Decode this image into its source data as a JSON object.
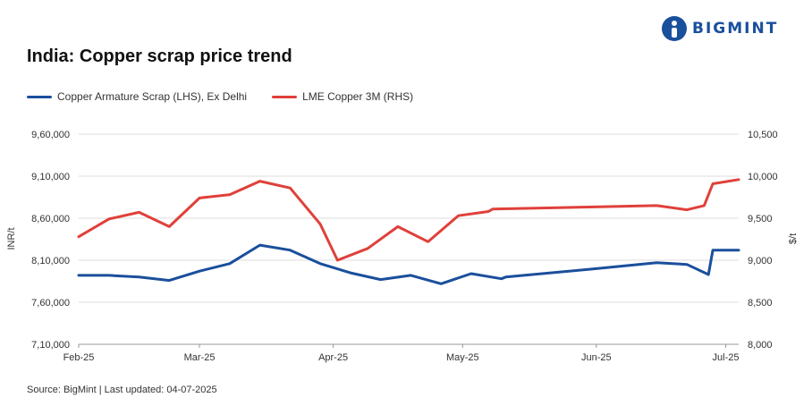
{
  "header": {
    "title": "India: Copper scrap price trend",
    "logo_text": "BIGMINT"
  },
  "footer": {
    "source": "Source: BigMint | Last updated: 04-07-2025"
  },
  "colors": {
    "series_lhs": "#1a4f9c",
    "series_rhs": "#e0403a",
    "grid": "#dddddd",
    "brand": "#1a4f9c"
  },
  "chart_data": {
    "type": "line",
    "title": "India: Copper scrap price trend",
    "xlabel": "",
    "ylabel_left": "INR/t",
    "ylabel_right": "$/t",
    "ylim_left": [
      710000,
      960000
    ],
    "ylim_right": [
      8000,
      10500
    ],
    "yticks_left": [
      "7,10,000",
      "7,60,000",
      "8,10,000",
      "8,60,000",
      "9,10,000",
      "9,60,000"
    ],
    "yticks_right": [
      "8,000",
      "8,500",
      "9,000",
      "9,500",
      "10,000",
      "10,500"
    ],
    "xticks": [
      "Feb-25",
      "Mar-25",
      "Apr-25",
      "May-25",
      "Jun-25",
      "Jul-25"
    ],
    "x_range": [
      "2025-02-01",
      "2025-07-04"
    ],
    "grid": true,
    "legend_position": "top-left",
    "series": [
      {
        "name": "Copper Armature Scrap (LHS), Ex Delhi",
        "axis": "left",
        "points": [
          [
            "2025-02-01",
            792000
          ],
          [
            "2025-02-08",
            792000
          ],
          [
            "2025-02-15",
            790000
          ],
          [
            "2025-02-22",
            786000
          ],
          [
            "2025-03-01",
            797000
          ],
          [
            "2025-03-08",
            806000
          ],
          [
            "2025-03-15",
            828000
          ],
          [
            "2025-03-22",
            822000
          ],
          [
            "2025-03-29",
            806000
          ],
          [
            "2025-04-05",
            795000
          ],
          [
            "2025-04-12",
            787000
          ],
          [
            "2025-04-19",
            792000
          ],
          [
            "2025-04-26",
            782000
          ],
          [
            "2025-05-03",
            794000
          ],
          [
            "2025-05-10",
            788000
          ],
          [
            "2025-05-11",
            790000
          ],
          [
            "2025-06-01",
            800000
          ],
          [
            "2025-06-15",
            807000
          ],
          [
            "2025-06-22",
            805000
          ],
          [
            "2025-06-27",
            793000
          ],
          [
            "2025-06-28",
            822000
          ],
          [
            "2025-07-04",
            822000
          ]
        ]
      },
      {
        "name": "LME Copper 3M (RHS)",
        "axis": "right",
        "points": [
          [
            "2025-02-01",
            9280
          ],
          [
            "2025-02-08",
            9490
          ],
          [
            "2025-02-15",
            9570
          ],
          [
            "2025-02-22",
            9400
          ],
          [
            "2025-03-01",
            9740
          ],
          [
            "2025-03-08",
            9780
          ],
          [
            "2025-03-15",
            9940
          ],
          [
            "2025-03-22",
            9860
          ],
          [
            "2025-03-29",
            9430
          ],
          [
            "2025-04-02",
            9000
          ],
          [
            "2025-04-09",
            9140
          ],
          [
            "2025-04-16",
            9400
          ],
          [
            "2025-04-23",
            9220
          ],
          [
            "2025-04-30",
            9530
          ],
          [
            "2025-05-07",
            9580
          ],
          [
            "2025-05-08",
            9610
          ],
          [
            "2025-06-15",
            9650
          ],
          [
            "2025-06-22",
            9600
          ],
          [
            "2025-06-26",
            9650
          ],
          [
            "2025-06-28",
            9910
          ],
          [
            "2025-07-04",
            9960
          ]
        ]
      }
    ]
  }
}
